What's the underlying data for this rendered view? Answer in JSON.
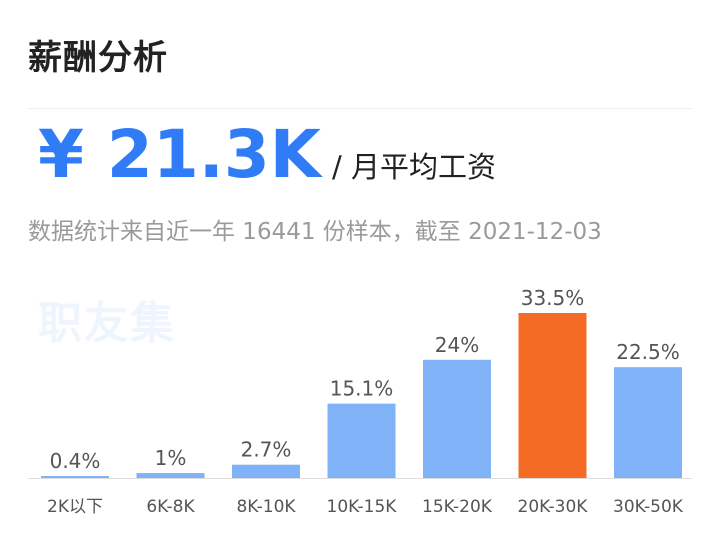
{
  "header": {
    "title": "薪酬分析"
  },
  "salary": {
    "value": "¥ 21.3K",
    "unit": "/ 月平均工资"
  },
  "note": "数据统计来自近一年 16441 份样本，截至 2021-12-03",
  "watermark": "职友集",
  "colors": {
    "bar": "#7fb2f7",
    "highlight": "#f36b25",
    "accent": "#2f7cf6",
    "axis": "#dddddd"
  },
  "chart_data": {
    "type": "bar",
    "categories": [
      "2K以下",
      "6K-8K",
      "8K-10K",
      "10K-15K",
      "15K-20K",
      "20K-30K",
      "30K-50K"
    ],
    "values": [
      0.4,
      1,
      2.7,
      15.1,
      24,
      33.5,
      22.5
    ],
    "data_labels": [
      "0.4%",
      "1%",
      "2.7%",
      "15.1%",
      "24%",
      "33.5%",
      "22.5%"
    ],
    "highlight_index": 5,
    "title": "",
    "xlabel": "",
    "ylabel": "",
    "ylim": [
      0,
      33.5
    ],
    "grid": false,
    "legend": "none"
  }
}
